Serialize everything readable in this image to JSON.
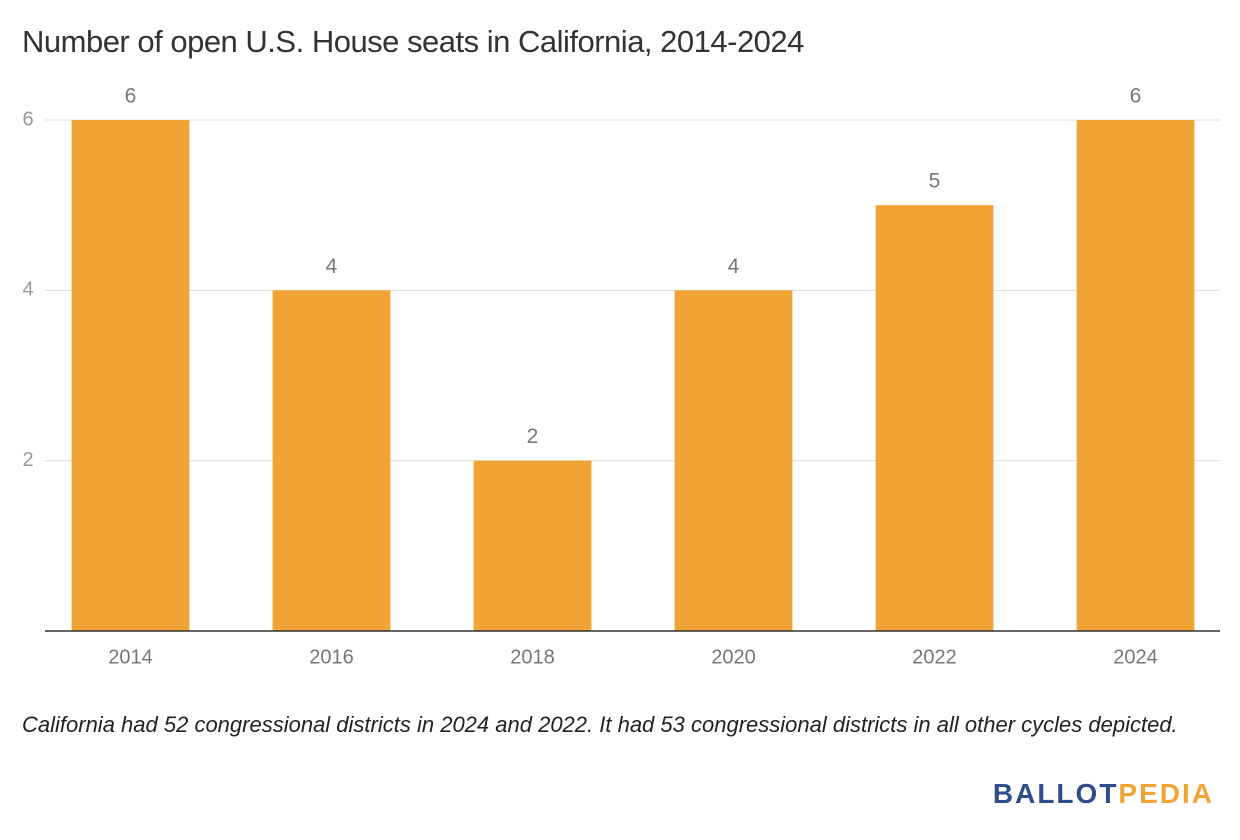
{
  "chart_data": {
    "type": "bar",
    "title": "Number of open U.S. House seats in California, 2014-2024",
    "categories": [
      "2014",
      "2016",
      "2018",
      "2020",
      "2022",
      "2024"
    ],
    "values": [
      6,
      4,
      2,
      4,
      5,
      6
    ],
    "color": "#f0a435",
    "ylim": [
      0,
      6
    ],
    "yticks": [
      2,
      4,
      6
    ],
    "grid": true,
    "note": "California had 52 congressional districts in 2024 and 2022. It had 53 congressional districts in all other cycles depicted.",
    "logo": [
      "BALLOT",
      "PEDIA"
    ]
  }
}
